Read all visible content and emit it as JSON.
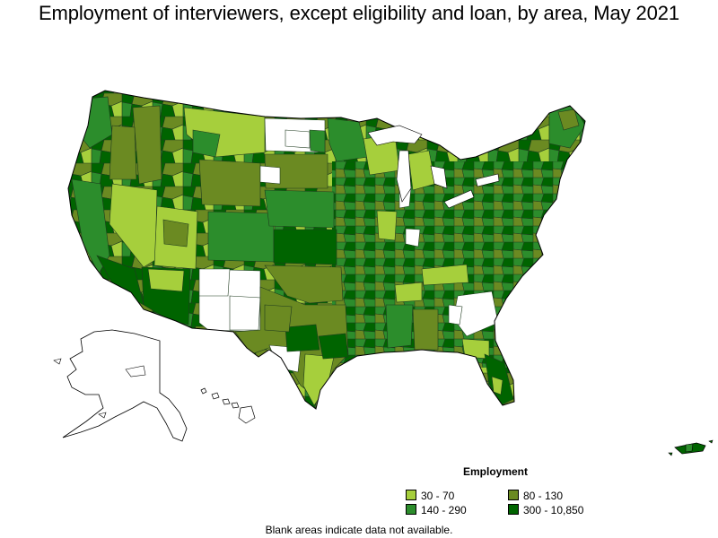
{
  "title": "Employment of interviewers, except eligibility and loan, by area, May 2021",
  "legend": {
    "title": "Employment",
    "items": [
      {
        "label": "30 - 70",
        "color": "#a6cf3c"
      },
      {
        "label": "80 - 130",
        "color": "#6b8a22"
      },
      {
        "label": "140 - 290",
        "color": "#2c8d2c"
      },
      {
        "label": "300 - 10,850",
        "color": "#006400"
      }
    ]
  },
  "no_data_color": "#ffffff",
  "footnote": "Blank areas indicate data not available.",
  "regions": [
    "contiguous-us",
    "alaska",
    "hawaii",
    "puerto-rico"
  ]
}
